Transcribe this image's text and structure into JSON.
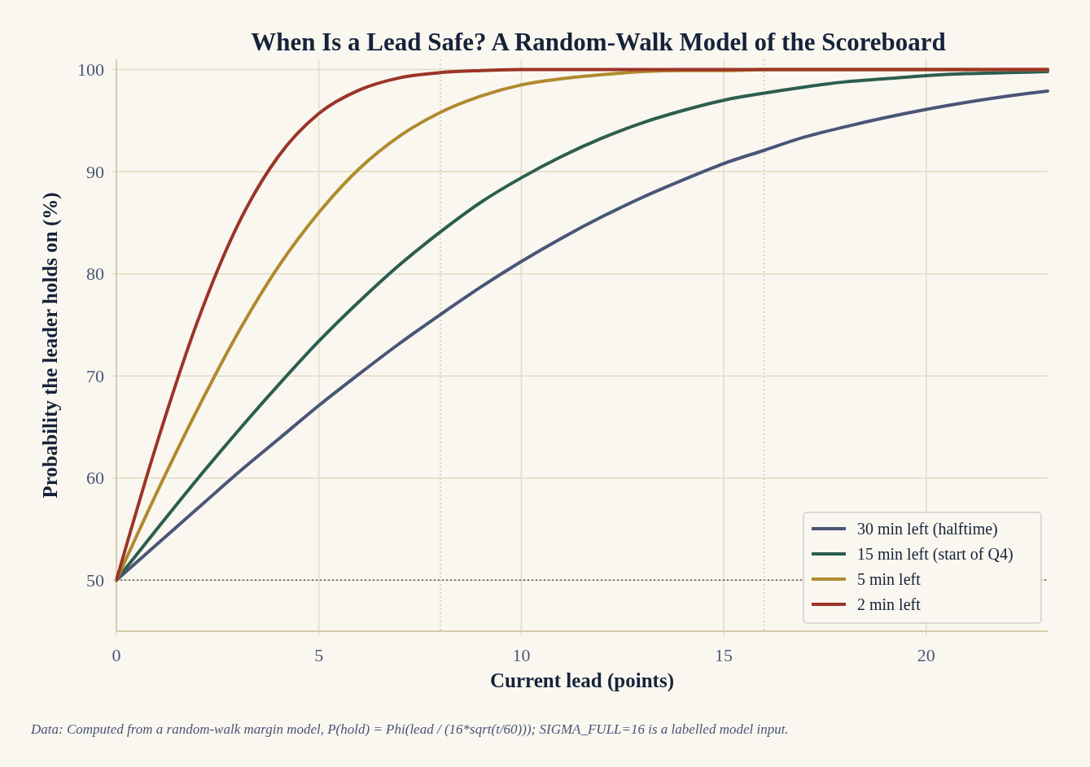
{
  "chart_data": {
    "type": "line",
    "title": "When Is a Lead Safe? A Random-Walk Model of the Scoreboard",
    "xlabel": "Current lead (points)",
    "ylabel": "Probability the leader holds on (%)",
    "x": [
      0,
      1,
      2,
      3,
      4,
      5,
      6,
      7,
      8,
      9,
      10,
      11,
      12,
      13,
      14,
      15,
      16,
      17,
      18,
      19,
      20,
      21,
      22,
      23
    ],
    "series": [
      {
        "name": "30 min left (halftime)",
        "color": "#4a5578",
        "values": [
          50,
          53.5,
          57.0,
          60.5,
          63.8,
          67.1,
          70.2,
          73.2,
          76.0,
          78.7,
          81.2,
          83.5,
          85.6,
          87.5,
          89.2,
          90.8,
          92.1,
          93.4,
          94.4,
          95.3,
          96.1,
          96.8,
          97.4,
          97.9
        ]
      },
      {
        "name": "15 min left (start of Q4)",
        "color": "#2c5e4f",
        "values": [
          50,
          55.0,
          59.9,
          64.6,
          69.1,
          73.4,
          77.3,
          80.9,
          84.1,
          87.0,
          89.4,
          91.5,
          93.3,
          94.8,
          96.0,
          97.0,
          97.7,
          98.3,
          98.8,
          99.1,
          99.4,
          99.6,
          99.7,
          99.8
        ]
      },
      {
        "name": "5 min left",
        "color": "#b08a2e",
        "values": [
          50,
          58.6,
          66.7,
          74.2,
          80.7,
          86.0,
          90.3,
          93.5,
          95.8,
          97.4,
          98.5,
          99.1,
          99.5,
          99.8,
          99.9,
          99.9,
          100,
          100,
          100,
          100,
          100,
          100,
          100,
          100
        ]
      },
      {
        "name": "2 min left",
        "color": "#9c3428",
        "values": [
          50,
          63.4,
          75.3,
          84.8,
          91.5,
          95.7,
          98.0,
          99.2,
          99.7,
          99.9,
          100,
          100,
          100,
          100,
          100,
          100,
          100,
          100,
          100,
          100,
          100,
          100,
          100,
          100
        ]
      }
    ],
    "xlim": [
      0,
      23
    ],
    "xticks": [
      0,
      5,
      10,
      15,
      20
    ],
    "ylim": [
      45,
      101
    ],
    "yticks": [
      50,
      60,
      70,
      80,
      90,
      100
    ],
    "grid": true,
    "legend": "bottom right",
    "line_style": "solid",
    "ref_lines": [
      {
        "axis": "y",
        "value": 50,
        "color": "#555555",
        "line_style": "dotted"
      },
      {
        "axis": "x",
        "value": 8,
        "color": "#cfc4a0",
        "line_style": "dotted"
      },
      {
        "axis": "x",
        "value": 16,
        "color": "#cfc4a0",
        "line_style": "dotted"
      }
    ],
    "annotations": [
      "Data: Computed from a random-walk margin model, P(hold) = Phi(lead / (16*sqrt(t/60))); SIGMA_FULL=16 is a labelled model input."
    ]
  }
}
